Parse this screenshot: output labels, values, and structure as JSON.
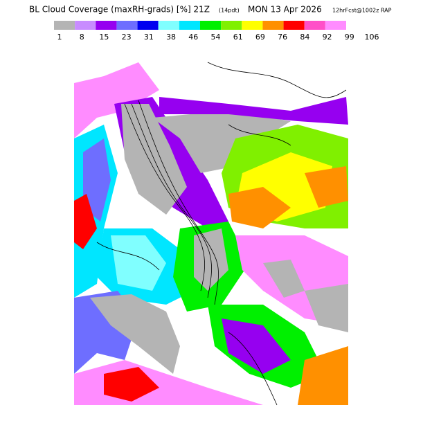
{
  "header": {
    "title": "BL Cloud Coverage (maxRH-grads) [%] 21Z",
    "title_note": "(14pdt)",
    "title_date": "MON 13 Apr 2026",
    "source": "12hrFcst@1002z RAP"
  },
  "colorbar": {
    "labels": [
      1,
      8,
      15,
      23,
      31,
      38,
      46,
      54,
      61,
      69,
      76,
      84,
      92,
      99,
      106
    ],
    "colors": [
      "#b4b4b4",
      "#c88cff",
      "#9600f0",
      "#6e6eff",
      "#0000f0",
      "#80ffff",
      "#00e6ff",
      "#00f000",
      "#80f000",
      "#ffff00",
      "#ff9000",
      "#ff0000",
      "#ff50c8",
      "#ff8cff"
    ]
  }
}
